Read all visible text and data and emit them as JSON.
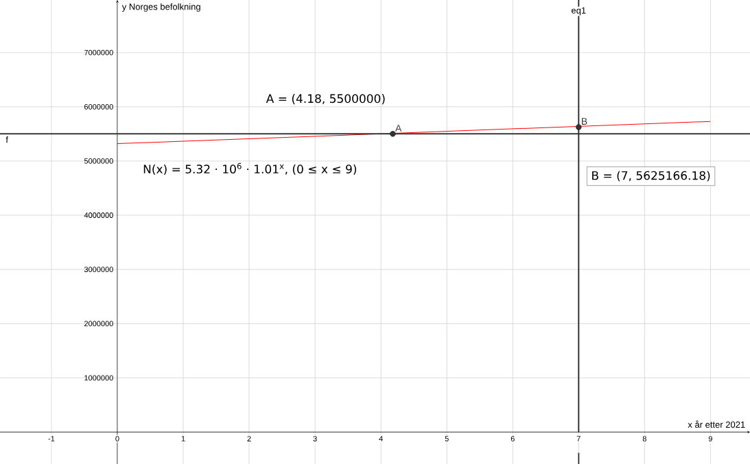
{
  "chart_data": {
    "type": "line",
    "xlabel": "x år etter 2021",
    "ylabel": "y Norges befolkning",
    "xlim": [
      -1.78,
      9.6
    ],
    "ylim": [
      -590000,
      7970000
    ],
    "xticks": [
      -1,
      0,
      1,
      2,
      3,
      4,
      5,
      6,
      7,
      8,
      9
    ],
    "yticks": [
      1000000,
      2000000,
      3000000,
      4000000,
      5000000,
      6000000,
      7000000
    ],
    "grid": true,
    "series": [
      {
        "color": "#ff0000",
        "x": [
          0,
          9
        ],
        "values": [
          5320000,
          5730000
        ]
      },
      {
        "type": "scatter",
        "name": "A",
        "color": "#333333",
        "marker": "circle",
        "x": [
          4.18
        ],
        "values": [
          5500000
        ]
      },
      {
        "type": "scatter",
        "name": "B",
        "color": "#333333",
        "marker": "circle",
        "x": [
          7
        ],
        "values": [
          5625166.18
        ]
      }
    ],
    "ref_lines": [
      {
        "axis": "y",
        "value": 5500000,
        "label": "f",
        "color": "#333333"
      },
      {
        "axis": "x",
        "value": 7,
        "label": "eq1",
        "color": "#333333"
      }
    ],
    "annotations": [
      "A = (4.18, 5500000)",
      "N(x) = 5.32 · 10$^{6}$ · 1.01$^{x}$,   (0 ≤ x ≤ 9)",
      "B = (7, 5625166.18)"
    ]
  }
}
